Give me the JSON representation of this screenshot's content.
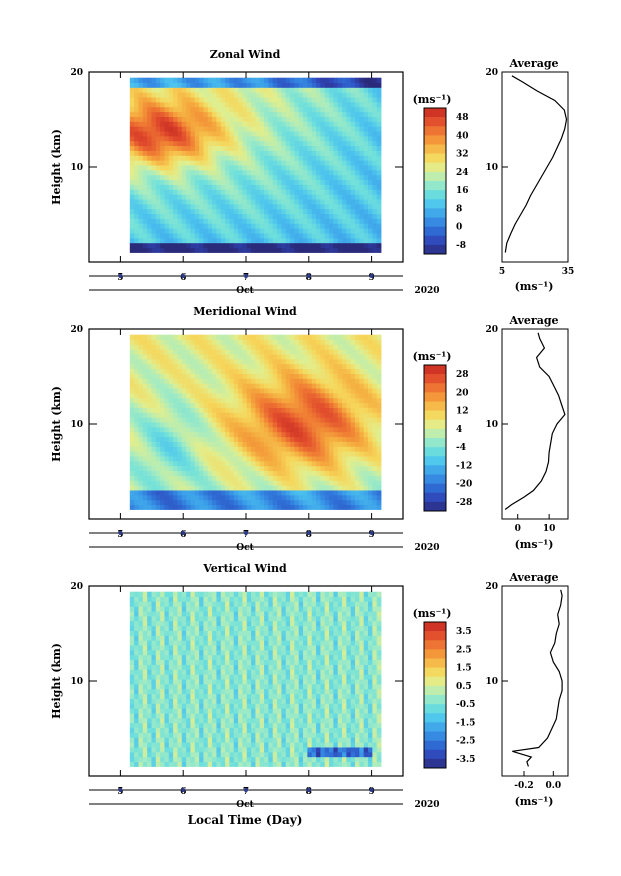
{
  "figure": {
    "xlabel": "Local Time (Day)",
    "month_label": "Oct",
    "year_label": "2020",
    "x_ticks": [
      "5",
      "6",
      "7",
      "8",
      "9"
    ],
    "y_ticks": [
      "10",
      "20"
    ],
    "ylabel": "Height (km)",
    "cbar_unit": "(ms⁻¹)",
    "avg_title": "Average",
    "avg_unit": "(ms⁻¹)"
  },
  "chart_data": [
    {
      "type": "heatmap",
      "title": "Zonal Wind",
      "xlabel": "Local Time (Day)",
      "ylabel": "Height (km)",
      "xlim": [
        4.5,
        9.5
      ],
      "ylim": [
        0,
        20
      ],
      "colorbar": {
        "ticks": [
          48,
          40,
          32,
          24,
          16,
          8,
          0,
          -8
        ],
        "range": [
          -12,
          52
        ]
      },
      "data_x_range": [
        5.15,
        9.15
      ],
      "data_y_range": [
        1,
        19.4
      ],
      "average_profile": {
        "xlim": [
          5,
          35
        ],
        "x_tick_labels": [
          "5",
          "35"
        ],
        "points": [
          [
            6.5,
            1.0
          ],
          [
            7.2,
            2.0
          ],
          [
            9.0,
            3.0
          ],
          [
            11.0,
            4.0
          ],
          [
            13.5,
            5.0
          ],
          [
            16.0,
            6.0
          ],
          [
            18.0,
            7.0
          ],
          [
            20.5,
            8.0
          ],
          [
            23.0,
            9.0
          ],
          [
            25.5,
            10.0
          ],
          [
            28.0,
            11.0
          ],
          [
            30.0,
            12.0
          ],
          [
            32.0,
            13.0
          ],
          [
            33.5,
            14.0
          ],
          [
            34.3,
            15.0
          ],
          [
            33.3,
            16.0
          ],
          [
            29.0,
            17.0
          ],
          [
            21.0,
            18.0
          ],
          [
            14.0,
            19.0
          ],
          [
            9.5,
            19.6
          ]
        ]
      }
    },
    {
      "type": "heatmap",
      "title": "Meridional Wind",
      "xlabel": "Local Time (Day)",
      "ylabel": "Height (km)",
      "xlim": [
        4.5,
        9.5
      ],
      "ylim": [
        0,
        20
      ],
      "colorbar": {
        "ticks": [
          28,
          20,
          12,
          4,
          -4,
          -12,
          -20,
          -28
        ],
        "range": [
          -32,
          32
        ]
      },
      "data_x_range": [
        5.15,
        9.15
      ],
      "data_y_range": [
        1,
        19.4
      ],
      "average_profile": {
        "xlim": [
          -5,
          16
        ],
        "x_tick_labels": [
          "0",
          "10"
        ],
        "points": [
          [
            -4.0,
            1.0
          ],
          [
            -2.0,
            1.5
          ],
          [
            2.0,
            2.3
          ],
          [
            5.0,
            3.0
          ],
          [
            7.5,
            4.0
          ],
          [
            9.0,
            5.0
          ],
          [
            9.8,
            6.0
          ],
          [
            10.0,
            7.0
          ],
          [
            10.5,
            8.0
          ],
          [
            11.0,
            9.0
          ],
          [
            12.5,
            10.0
          ],
          [
            15.0,
            11.0
          ],
          [
            14.0,
            12.0
          ],
          [
            13.0,
            13.0
          ],
          [
            11.5,
            14.0
          ],
          [
            10.0,
            15.0
          ],
          [
            7.0,
            16.0
          ],
          [
            6.0,
            17.0
          ],
          [
            8.5,
            18.0
          ],
          [
            7.0,
            19.0
          ],
          [
            6.5,
            19.6
          ]
        ]
      }
    },
    {
      "type": "heatmap",
      "title": "Vertical Wind",
      "xlabel": "Local Time (Day)",
      "ylabel": "Height (km)",
      "xlim": [
        4.5,
        9.5
      ],
      "ylim": [
        0,
        20
      ],
      "colorbar": {
        "ticks": [
          3.5,
          2.5,
          1.5,
          0.5,
          -0.5,
          -1.5,
          -2.5,
          -3.5
        ],
        "range": [
          -4,
          4
        ]
      },
      "data_x_range": [
        5.15,
        9.15
      ],
      "data_y_range": [
        1,
        19.4
      ],
      "average_profile": {
        "xlim": [
          -0.35,
          0.1
        ],
        "x_tick_labels": [
          "-0.2",
          "0.0"
        ],
        "points": [
          [
            -0.17,
            1.0
          ],
          [
            -0.18,
            1.5
          ],
          [
            -0.15,
            2.0
          ],
          [
            -0.28,
            2.6
          ],
          [
            -0.1,
            3.0
          ],
          [
            -0.04,
            4.0
          ],
          [
            -0.01,
            5.0
          ],
          [
            0.02,
            6.0
          ],
          [
            0.03,
            7.0
          ],
          [
            0.04,
            8.0
          ],
          [
            0.06,
            9.0
          ],
          [
            0.06,
            10.0
          ],
          [
            0.04,
            11.0
          ],
          [
            0.0,
            12.0
          ],
          [
            -0.02,
            13.0
          ],
          [
            0.01,
            14.0
          ],
          [
            0.02,
            15.0
          ],
          [
            0.04,
            16.0
          ],
          [
            0.03,
            17.0
          ],
          [
            0.05,
            18.0
          ],
          [
            0.06,
            19.0
          ],
          [
            0.05,
            19.6
          ]
        ]
      }
    }
  ]
}
